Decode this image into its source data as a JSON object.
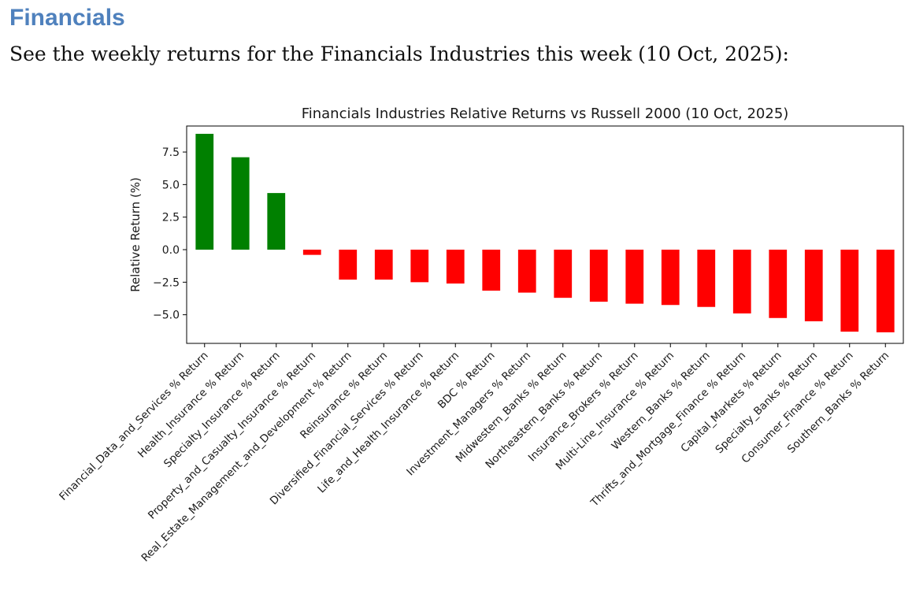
{
  "header": {
    "section_title": "Financials",
    "intro_text": "See the weekly returns for the Financials Industries this week (10 Oct, 2025):"
  },
  "colors": {
    "positive": "#008000",
    "negative": "#ff0000",
    "section_title": "#4f81bd"
  },
  "chart_data": {
    "type": "bar",
    "title": "Financials Industries Relative Returns vs Russell 2000 (10 Oct, 2025)",
    "xlabel": "",
    "ylabel": "Relative Return (%)",
    "ylim": [
      -7.2,
      9.5
    ],
    "yticks": [
      -5.0,
      -2.5,
      0.0,
      2.5,
      5.0,
      7.5
    ],
    "ytick_labels": [
      "−5.0",
      "−2.5",
      "0.0",
      "2.5",
      "5.0",
      "7.5"
    ],
    "grid": false,
    "categories": [
      "Financial_Data_and_Services % Return",
      "Health_Insurance % Return",
      "Specialty_Insurance % Return",
      "Property_and_Casualty_Insurance % Return",
      "Real_Estate_Management_and_Development % Return",
      "Reinsurance % Return",
      "Diversified_Financial_Services % Return",
      "Life_and_Health_Insurance % Return",
      "BDC % Return",
      "Investment_Managers % Return",
      "Midwestern_Banks % Return",
      "Northeastern_Banks % Return",
      "Insurance_Brokers % Return",
      "Multi-Line_Insurance % Return",
      "Western_Banks % Return",
      "Thrifts_and_Mortgage_Finance % Return",
      "Capital_Markets % Return",
      "Specialty_Banks % Return",
      "Consumer_Finance % Return",
      "Southern_Banks % Return"
    ],
    "values": [
      8.9,
      7.1,
      4.35,
      -0.4,
      -2.3,
      -2.3,
      -2.5,
      -2.6,
      -3.15,
      -3.3,
      -3.7,
      -4.0,
      -4.15,
      -4.25,
      -4.4,
      -4.9,
      -5.25,
      -5.5,
      -6.3,
      -6.35
    ]
  }
}
